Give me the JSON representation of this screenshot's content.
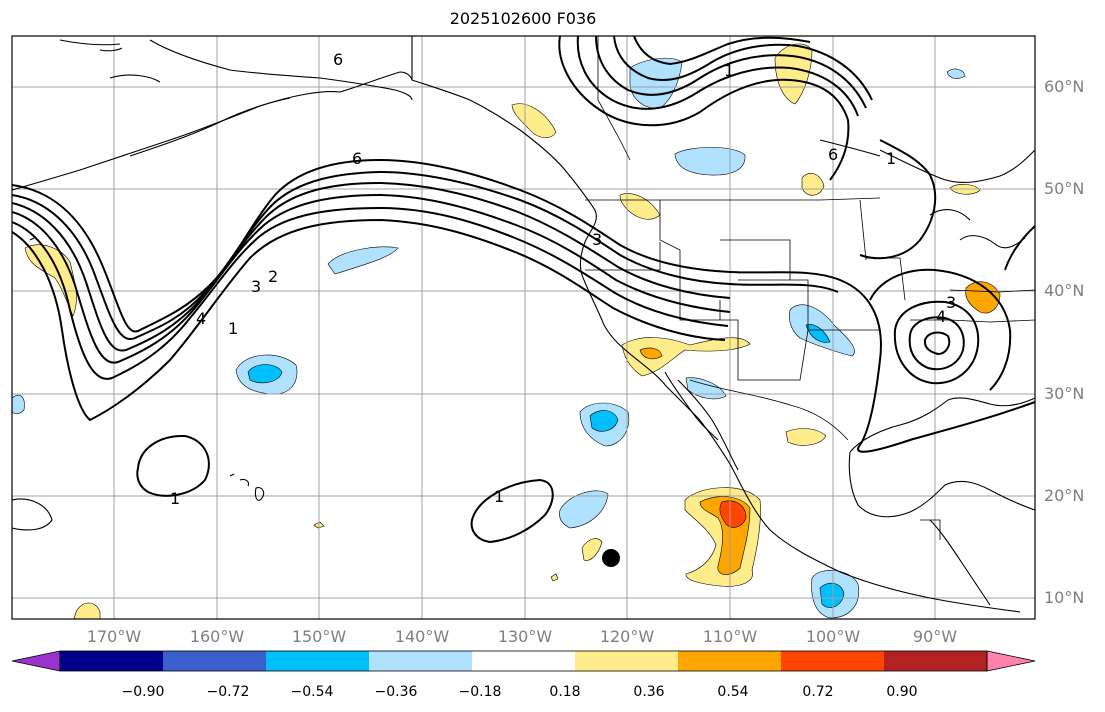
{
  "title": "2025102600 F036",
  "lat_labels": [
    "60°N",
    "50°N",
    "40°N",
    "30°N",
    "20°N",
    "10°N"
  ],
  "lon_labels": [
    "170°W",
    "160°W",
    "150°W",
    "140°W",
    "130°W",
    "120°W",
    "110°W",
    "100°W",
    "90°W"
  ],
  "contour_labels": [
    "6",
    "6",
    "4",
    "3",
    "2",
    "1",
    "3",
    "1",
    "1",
    "1",
    "1",
    "3",
    "4",
    "6"
  ],
  "colorbar": {
    "ticks": [
      "−0.90",
      "−0.72",
      "−0.54",
      "−0.36",
      "−0.18",
      "0.18",
      "0.36",
      "0.54",
      "0.72",
      "0.90"
    ],
    "colors": [
      "#9a32cd",
      "#00008b",
      "#3a5fcd",
      "#00bfff",
      "#b0e2ff",
      "#ffffff",
      "#ffec8b",
      "#ffa500",
      "#ff4500",
      "#b22222",
      "#ff82ab"
    ]
  },
  "colors": {
    "land": "#000000",
    "grid": "#a0a0a0",
    "contour": "#000000",
    "label": "#7f7f7f"
  }
}
